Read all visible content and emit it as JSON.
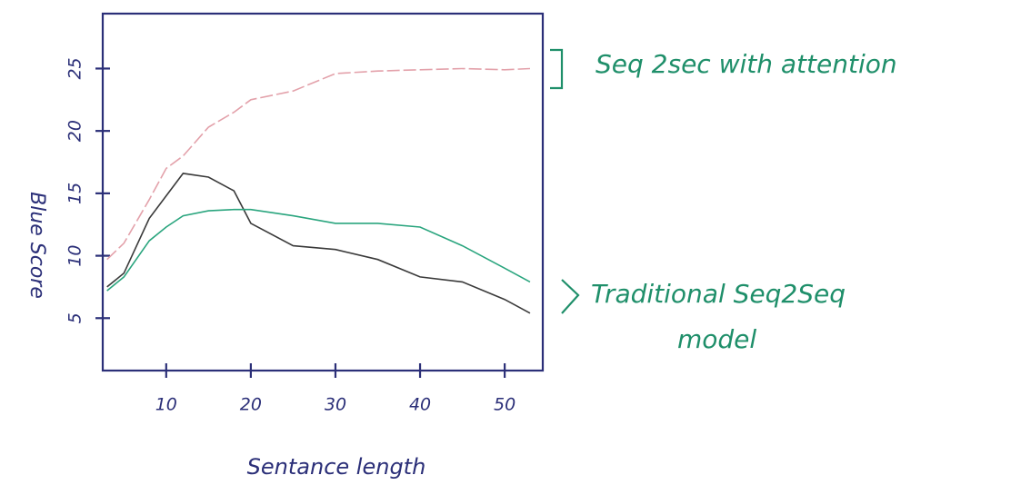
{
  "chart_data": {
    "type": "line",
    "x_label": "Sentance length",
    "y_label": "Blue Score",
    "x": [
      3,
      5,
      8,
      10,
      12,
      15,
      18,
      20,
      25,
      30,
      35,
      40,
      45,
      50,
      53
    ],
    "series": [
      {
        "name": "Seq 2sec with attention",
        "color": "#e3a1aa",
        "values": [
          9.7,
          11,
          14.5,
          17,
          18,
          20.3,
          21.5,
          22.5,
          23.2,
          24.6,
          24.8,
          24.9,
          25,
          24.9,
          25
        ]
      },
      {
        "color": "#3a3a3a",
        "values": [
          7.5,
          8.6,
          13,
          14.8,
          16.6,
          16.3,
          15.2,
          12.6,
          10.8,
          10.5,
          9.7,
          8.3,
          7.9,
          6.5,
          5.4
        ]
      },
      {
        "color": "#2aa57e",
        "values": [
          7.2,
          8.3,
          11.2,
          12.3,
          13.2,
          13.6,
          13.7,
          13.7,
          13.2,
          12.6,
          12.6,
          12.3,
          10.8,
          9,
          7.9
        ]
      }
    ],
    "annotations": [
      "Traditional Seq2Seq",
      "model"
    ],
    "xlim": [
      2.5,
      54.5
    ],
    "xticks": [
      10,
      20,
      30,
      40,
      50
    ],
    "ylim": [
      0.8,
      29.4
    ],
    "yticks": [
      5,
      10,
      15,
      20,
      25
    ]
  }
}
